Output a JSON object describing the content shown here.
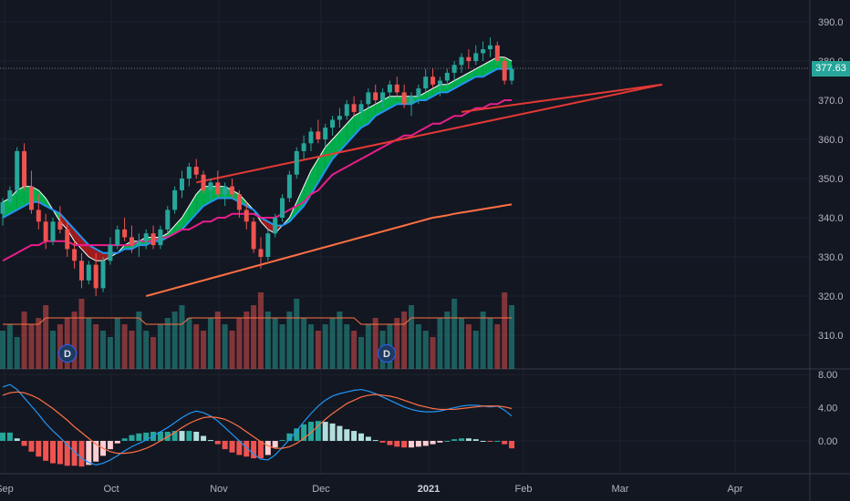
{
  "chart_data": [
    {
      "type": "candlestick",
      "y_axis": {
        "min": 305,
        "max": 392,
        "ticks": [
          390,
          380,
          370,
          360,
          350,
          340,
          330,
          320,
          310
        ]
      },
      "x_axis": {
        "labels": [
          "Sep",
          "Oct",
          "Nov",
          "Dec",
          "2021",
          "Feb",
          "Mar",
          "Apr"
        ]
      },
      "last_price": "377.63",
      "last_price_color": "#26a69a",
      "up_color": "#26a69a",
      "down_color": "#ef5350",
      "candles": [
        [
          341,
          345,
          338,
          344
        ],
        [
          344,
          348,
          343,
          347
        ],
        [
          347,
          358,
          346,
          357
        ],
        [
          357,
          359,
          347,
          348
        ],
        [
          348,
          352,
          341,
          342
        ],
        [
          342,
          346,
          337,
          339
        ],
        [
          339,
          341,
          332,
          334
        ],
        [
          334,
          340,
          333,
          339
        ],
        [
          339,
          343,
          336,
          337
        ],
        [
          337,
          339,
          330,
          332
        ],
        [
          332,
          334,
          327,
          329
        ],
        [
          329,
          331,
          322,
          324
        ],
        [
          324,
          329,
          323,
          328
        ],
        [
          328,
          331,
          320,
          322
        ],
        [
          322,
          330,
          321,
          329
        ],
        [
          329,
          335,
          328,
          333
        ],
        [
          333,
          338,
          332,
          337
        ],
        [
          337,
          340,
          334,
          335
        ],
        [
          335,
          338,
          331,
          333
        ],
        [
          333,
          336,
          330,
          334
        ],
        [
          334,
          337,
          332,
          336
        ],
        [
          336,
          338,
          332,
          333
        ],
        [
          333,
          338,
          332,
          337
        ],
        [
          337,
          343,
          336,
          342
        ],
        [
          342,
          348,
          341,
          347
        ],
        [
          347,
          352,
          345,
          350
        ],
        [
          350,
          354,
          348,
          353
        ],
        [
          353,
          355,
          350,
          351
        ],
        [
          351,
          352,
          346,
          347
        ],
        [
          347,
          350,
          344,
          349
        ],
        [
          349,
          352,
          345,
          346
        ],
        [
          346,
          349,
          343,
          348
        ],
        [
          348,
          350,
          345,
          346
        ],
        [
          346,
          347,
          340,
          342
        ],
        [
          342,
          344,
          337,
          339
        ],
        [
          339,
          340,
          331,
          332
        ],
        [
          332,
          335,
          327,
          330
        ],
        [
          330,
          337,
          329,
          336
        ],
        [
          336,
          341,
          335,
          340
        ],
        [
          340,
          346,
          339,
          345
        ],
        [
          345,
          352,
          344,
          351
        ],
        [
          351,
          358,
          350,
          357
        ],
        [
          357,
          361,
          355,
          359
        ],
        [
          359,
          363,
          357,
          362
        ],
        [
          362,
          365,
          359,
          360
        ],
        [
          360,
          364,
          358,
          363
        ],
        [
          363,
          366,
          361,
          365
        ],
        [
          365,
          368,
          363,
          366
        ],
        [
          366,
          370,
          365,
          369
        ],
        [
          369,
          371,
          366,
          367
        ],
        [
          367,
          370,
          365,
          369
        ],
        [
          369,
          373,
          368,
          372
        ],
        [
          372,
          374,
          369,
          370
        ],
        [
          370,
          373,
          368,
          372
        ],
        [
          372,
          375,
          370,
          374
        ],
        [
          374,
          376,
          371,
          372
        ],
        [
          372,
          374,
          368,
          369
        ],
        [
          369,
          372,
          366,
          371
        ],
        [
          371,
          374,
          369,
          373
        ],
        [
          373,
          378,
          372,
          376
        ],
        [
          376,
          378,
          373,
          374
        ],
        [
          374,
          376,
          371,
          375
        ],
        [
          375,
          378,
          373,
          377
        ],
        [
          377,
          380,
          375,
          379
        ],
        [
          379,
          382,
          377,
          381
        ],
        [
          381,
          383,
          378,
          380
        ],
        [
          380,
          384,
          379,
          382
        ],
        [
          382,
          385,
          380,
          383
        ],
        [
          383,
          386,
          381,
          384
        ],
        [
          384,
          385,
          379,
          380
        ],
        [
          380,
          381,
          374,
          375
        ],
        [
          375,
          379,
          374,
          378
        ]
      ],
      "moving_averages": [
        {
          "color": "#ffffff",
          "values": [
            344,
            345,
            347,
            348,
            348,
            347,
            345,
            342,
            339,
            337,
            334,
            332,
            330,
            329,
            329,
            330,
            331,
            333,
            334,
            334,
            335,
            335,
            335,
            336,
            338,
            340,
            343,
            346,
            348,
            348,
            348,
            348,
            347,
            346,
            344,
            342,
            339,
            337,
            336,
            338,
            340,
            344,
            348,
            352,
            355,
            358,
            360,
            362,
            364,
            366,
            367,
            368,
            369,
            370,
            371,
            371,
            371,
            371,
            371,
            372,
            373,
            374,
            374,
            375,
            376,
            377,
            378,
            379,
            380,
            381,
            381,
            380
          ]
        },
        {
          "color": "#2196f3",
          "values": [
            340,
            341,
            342,
            343,
            344,
            344,
            343,
            342,
            341,
            339,
            337,
            335,
            333,
            332,
            331,
            331,
            331,
            332,
            332,
            333,
            333,
            334,
            334,
            335,
            336,
            337,
            339,
            341,
            343,
            344,
            345,
            345,
            345,
            344,
            343,
            342,
            340,
            339,
            338,
            338,
            339,
            341,
            343,
            346,
            349,
            352,
            355,
            357,
            359,
            361,
            363,
            364,
            366,
            367,
            368,
            369,
            369,
            369,
            370,
            370,
            371,
            372,
            372,
            373,
            374,
            375,
            376,
            376,
            377,
            378,
            378,
            378
          ]
        },
        {
          "color": "#e91e8c",
          "values": [
            329,
            330,
            331,
            332,
            333,
            333,
            334,
            334,
            334,
            334,
            333,
            333,
            333,
            333,
            333,
            333,
            333,
            333,
            333,
            334,
            334,
            334,
            335,
            335,
            336,
            337,
            337,
            338,
            339,
            339,
            340,
            340,
            341,
            341,
            341,
            341,
            340,
            340,
            340,
            341,
            342,
            343,
            344,
            346,
            347,
            349,
            351,
            352,
            353,
            354,
            355,
            356,
            357,
            358,
            359,
            360,
            361,
            361,
            362,
            363,
            364,
            364,
            365,
            366,
            366,
            367,
            368,
            368,
            369,
            369,
            370,
            370
          ]
        },
        {
          "color": "#ff7043",
          "values": [
            null,
            null,
            null,
            null,
            null,
            null,
            null,
            null,
            null,
            null,
            null,
            null,
            null,
            null,
            null,
            null,
            null,
            null,
            null,
            null,
            320,
            320.5,
            321,
            321.5,
            322,
            322.5,
            323,
            323.5,
            324,
            324.5,
            325,
            325.5,
            326,
            326.5,
            327,
            327.5,
            328,
            328.5,
            329,
            329.5,
            330,
            330.5,
            331,
            331.5,
            332,
            332.5,
            333,
            333.5,
            334,
            334.5,
            335,
            335.5,
            336,
            336.5,
            337,
            337.5,
            338,
            338.5,
            339,
            339.5,
            340,
            340.3,
            340.6,
            341,
            341.3,
            341.6,
            341.9,
            342.2,
            342.5,
            342.8,
            343.1,
            343.4
          ]
        }
      ],
      "trendlines": [
        {
          "color": "#e53935",
          "from": [
            27,
            349
          ],
          "to": [
            92,
            374
          ]
        },
        {
          "color": "#e53935",
          "from": [
            64,
            367
          ],
          "to": [
            92,
            374
          ]
        }
      ],
      "ribbon_up_color": "#00c853",
      "ribbon_down_color": "#b71c1c",
      "volume": [
        6,
        7,
        5,
        9,
        7,
        8,
        10,
        6,
        7,
        8,
        9,
        11,
        8,
        7,
        6,
        5,
        8,
        7,
        6,
        9,
        6,
        5,
        7,
        8,
        9,
        10,
        8,
        7,
        6,
        8,
        9,
        7,
        6,
        8,
        9,
        10,
        12,
        9,
        8,
        7,
        9,
        11,
        8,
        7,
        6,
        7,
        8,
        9,
        7,
        6,
        5,
        7,
        8,
        6,
        7,
        8,
        9,
        10,
        7,
        6,
        5,
        8,
        9,
        11,
        8,
        7,
        6,
        9,
        8,
        7,
        12,
        10
      ],
      "volume_ma": [
        7,
        7,
        7,
        7,
        7,
        7,
        8,
        8,
        8,
        8,
        8,
        8,
        8,
        8,
        8,
        8,
        8,
        8,
        8,
        8,
        7,
        7,
        7,
        7,
        7,
        7,
        8,
        8,
        8,
        8,
        8,
        8,
        8,
        8,
        8,
        8,
        8,
        8,
        8,
        8,
        8,
        8,
        8,
        8,
        8,
        8,
        8,
        8,
        8,
        8,
        7,
        7,
        7,
        7,
        7,
        7,
        7,
        8,
        8,
        8,
        8,
        8,
        8,
        8,
        8,
        8,
        8,
        8,
        8,
        8,
        8,
        8
      ],
      "dividend_label": "D"
    },
    {
      "type": "macd",
      "y_axis": {
        "min": -3.5,
        "max": 9,
        "ticks": [
          "8.00",
          "4.00",
          "0.00"
        ]
      },
      "macd_color": "#2196f3",
      "signal_color": "#ff7043",
      "macd": [
        6.5,
        6.8,
        6.2,
        5.2,
        4.2,
        3.2,
        2.1,
        1.2,
        0.4,
        -0.5,
        -1.3,
        -2.1,
        -2.6,
        -2.9,
        -2.7,
        -2.3,
        -1.8,
        -1.2,
        -0.7,
        -0.3,
        0.1,
        0.6,
        1.1,
        1.6,
        2.2,
        2.8,
        3.3,
        3.6,
        3.4,
        3.0,
        2.4,
        1.6,
        0.8,
        0,
        -0.8,
        -1.6,
        -2.2,
        -2.3,
        -1.7,
        -0.8,
        0.2,
        1.2,
        2.3,
        3.3,
        4.2,
        4.9,
        5.4,
        5.7,
        5.9,
        6.1,
        6.2,
        6.0,
        5.7,
        5.3,
        4.9,
        4.5,
        4.1,
        3.8,
        3.6,
        3.5,
        3.5,
        3.6,
        3.8,
        4.0,
        4.2,
        4.3,
        4.3,
        4.2,
        4.1,
        4.2,
        3.7,
        3.0
      ],
      "signal": [
        5.5,
        5.8,
        5.9,
        5.8,
        5.5,
        5.1,
        4.5,
        3.9,
        3.2,
        2.5,
        1.7,
        1.0,
        0.3,
        -0.4,
        -0.9,
        -1.3,
        -1.5,
        -1.5,
        -1.4,
        -1.2,
        -0.9,
        -0.5,
        0,
        0.5,
        1.0,
        1.6,
        2.1,
        2.5,
        2.8,
        2.9,
        2.8,
        2.6,
        2.2,
        1.7,
        1.1,
        0.5,
        -0.1,
        -0.6,
        -0.9,
        -0.9,
        -0.7,
        -0.3,
        0.3,
        1.0,
        1.8,
        2.6,
        3.3,
        3.9,
        4.5,
        4.9,
        5.3,
        5.5,
        5.6,
        5.5,
        5.4,
        5.2,
        4.9,
        4.6,
        4.3,
        4.1,
        3.9,
        3.8,
        3.8,
        3.8,
        3.9,
        4.0,
        4.1,
        4.2,
        4.2,
        4.2,
        4.1,
        3.9
      ]
    }
  ]
}
